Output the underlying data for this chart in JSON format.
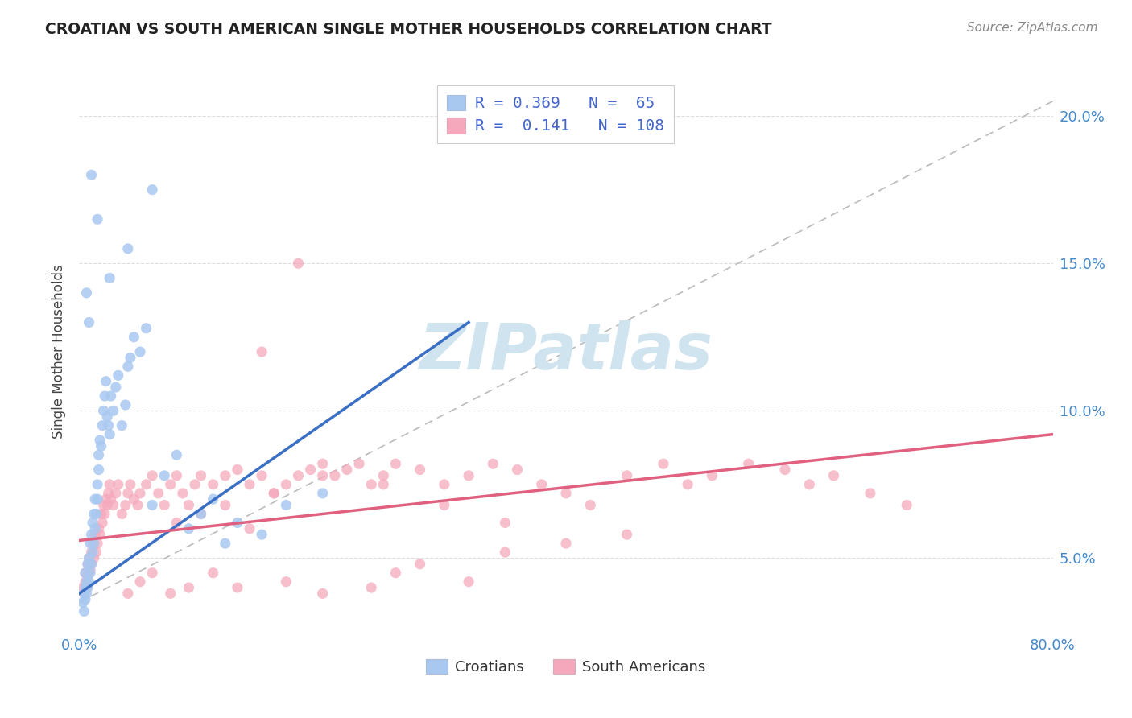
{
  "title": "CROATIAN VS SOUTH AMERICAN SINGLE MOTHER HOUSEHOLDS CORRELATION CHART",
  "source": "Source: ZipAtlas.com",
  "ylabel": "Single Mother Households",
  "xlim": [
    0.0,
    0.8
  ],
  "ylim": [
    0.025,
    0.215
  ],
  "xtick_positions": [
    0.0,
    0.1,
    0.2,
    0.3,
    0.4,
    0.5,
    0.6,
    0.7,
    0.8
  ],
  "xticklabels": [
    "0.0%",
    "",
    "",
    "",
    "",
    "",
    "",
    "",
    "80.0%"
  ],
  "yticks": [
    0.05,
    0.1,
    0.15,
    0.2
  ],
  "yticklabels": [
    "5.0%",
    "10.0%",
    "15.0%",
    "20.0%"
  ],
  "croatian_color": "#a8c8f0",
  "south_american_color": "#f5a8bc",
  "croatian_line_color": "#3a6fc4",
  "south_american_line_color": "#e06080",
  "diagonal_line_color": "#bbbbbb",
  "background_color": "#ffffff",
  "watermark_color": "#d0e4f0",
  "title_color": "#222222",
  "axis_label_color": "#444444",
  "tick_color": "#4488cc",
  "source_color": "#888888",
  "croatians_label": "Croatians",
  "south_americans_label": "South Americans",
  "legend_text_color": "#4466cc",
  "legend_label_color": "#333333",
  "croatian_r": "0.369",
  "croatian_n": "65",
  "south_american_r": "0.141",
  "south_american_n": "108",
  "croatian_x": [
    0.003,
    0.004,
    0.004,
    0.005,
    0.005,
    0.005,
    0.006,
    0.006,
    0.007,
    0.007,
    0.008,
    0.008,
    0.009,
    0.009,
    0.01,
    0.01,
    0.011,
    0.011,
    0.012,
    0.012,
    0.013,
    0.013,
    0.014,
    0.015,
    0.015,
    0.016,
    0.016,
    0.017,
    0.018,
    0.019,
    0.02,
    0.021,
    0.022,
    0.023,
    0.024,
    0.025,
    0.026,
    0.028,
    0.03,
    0.032,
    0.035,
    0.038,
    0.04,
    0.042,
    0.045,
    0.05,
    0.055,
    0.06,
    0.07,
    0.08,
    0.09,
    0.1,
    0.11,
    0.12,
    0.13,
    0.15,
    0.17,
    0.2,
    0.06,
    0.04,
    0.025,
    0.015,
    0.01,
    0.008,
    0.006
  ],
  "croatian_y": [
    0.035,
    0.032,
    0.038,
    0.04,
    0.036,
    0.045,
    0.038,
    0.042,
    0.04,
    0.048,
    0.042,
    0.05,
    0.045,
    0.055,
    0.048,
    0.058,
    0.052,
    0.062,
    0.055,
    0.065,
    0.06,
    0.07,
    0.065,
    0.075,
    0.07,
    0.08,
    0.085,
    0.09,
    0.088,
    0.095,
    0.1,
    0.105,
    0.11,
    0.098,
    0.095,
    0.092,
    0.105,
    0.1,
    0.108,
    0.112,
    0.095,
    0.102,
    0.115,
    0.118,
    0.125,
    0.12,
    0.128,
    0.068,
    0.078,
    0.085,
    0.06,
    0.065,
    0.07,
    0.055,
    0.062,
    0.058,
    0.068,
    0.072,
    0.175,
    0.155,
    0.145,
    0.165,
    0.18,
    0.13,
    0.14
  ],
  "south_american_x": [
    0.003,
    0.004,
    0.005,
    0.005,
    0.006,
    0.007,
    0.007,
    0.008,
    0.009,
    0.01,
    0.01,
    0.011,
    0.012,
    0.013,
    0.014,
    0.015,
    0.016,
    0.017,
    0.018,
    0.019,
    0.02,
    0.021,
    0.022,
    0.023,
    0.024,
    0.025,
    0.026,
    0.028,
    0.03,
    0.032,
    0.035,
    0.038,
    0.04,
    0.042,
    0.045,
    0.048,
    0.05,
    0.055,
    0.06,
    0.065,
    0.07,
    0.075,
    0.08,
    0.085,
    0.09,
    0.095,
    0.1,
    0.11,
    0.12,
    0.13,
    0.14,
    0.15,
    0.16,
    0.17,
    0.18,
    0.19,
    0.2,
    0.21,
    0.22,
    0.23,
    0.24,
    0.25,
    0.26,
    0.28,
    0.3,
    0.32,
    0.34,
    0.36,
    0.38,
    0.4,
    0.42,
    0.45,
    0.48,
    0.5,
    0.52,
    0.55,
    0.58,
    0.6,
    0.62,
    0.65,
    0.68,
    0.18,
    0.25,
    0.3,
    0.35,
    0.15,
    0.2,
    0.1,
    0.08,
    0.12,
    0.16,
    0.14,
    0.4,
    0.45,
    0.35,
    0.28,
    0.32,
    0.26,
    0.24,
    0.2,
    0.17,
    0.13,
    0.11,
    0.09,
    0.075,
    0.06,
    0.05,
    0.04
  ],
  "south_american_y": [
    0.04,
    0.038,
    0.042,
    0.045,
    0.04,
    0.048,
    0.044,
    0.05,
    0.046,
    0.052,
    0.048,
    0.055,
    0.05,
    0.058,
    0.052,
    0.055,
    0.06,
    0.058,
    0.065,
    0.062,
    0.068,
    0.065,
    0.07,
    0.068,
    0.072,
    0.075,
    0.07,
    0.068,
    0.072,
    0.075,
    0.065,
    0.068,
    0.072,
    0.075,
    0.07,
    0.068,
    0.072,
    0.075,
    0.078,
    0.072,
    0.068,
    0.075,
    0.078,
    0.072,
    0.068,
    0.075,
    0.078,
    0.075,
    0.078,
    0.08,
    0.075,
    0.078,
    0.072,
    0.075,
    0.078,
    0.08,
    0.082,
    0.078,
    0.08,
    0.082,
    0.075,
    0.078,
    0.082,
    0.08,
    0.075,
    0.078,
    0.082,
    0.08,
    0.075,
    0.072,
    0.068,
    0.078,
    0.082,
    0.075,
    0.078,
    0.082,
    0.08,
    0.075,
    0.078,
    0.072,
    0.068,
    0.15,
    0.075,
    0.068,
    0.062,
    0.12,
    0.078,
    0.065,
    0.062,
    0.068,
    0.072,
    0.06,
    0.055,
    0.058,
    0.052,
    0.048,
    0.042,
    0.045,
    0.04,
    0.038,
    0.042,
    0.04,
    0.045,
    0.04,
    0.038,
    0.045,
    0.042,
    0.038
  ]
}
